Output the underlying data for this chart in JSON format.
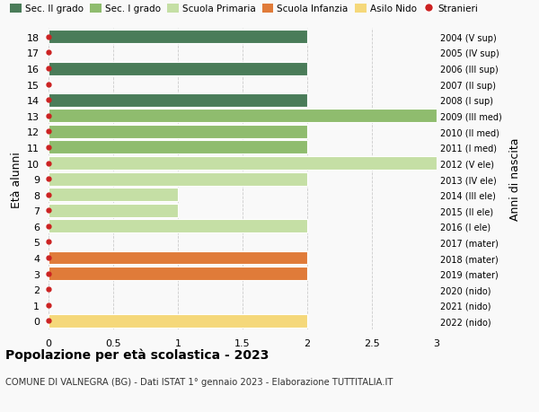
{
  "ages": [
    18,
    17,
    16,
    15,
    14,
    13,
    12,
    11,
    10,
    9,
    8,
    7,
    6,
    5,
    4,
    3,
    2,
    1,
    0
  ],
  "right_labels": [
    "2004 (V sup)",
    "2005 (IV sup)",
    "2006 (III sup)",
    "2007 (II sup)",
    "2008 (I sup)",
    "2009 (III med)",
    "2010 (II med)",
    "2011 (I med)",
    "2012 (V ele)",
    "2013 (IV ele)",
    "2014 (III ele)",
    "2015 (II ele)",
    "2016 (I ele)",
    "2017 (mater)",
    "2018 (mater)",
    "2019 (mater)",
    "2020 (nido)",
    "2021 (nido)",
    "2022 (nido)"
  ],
  "bar_values": [
    2,
    0,
    2,
    0,
    2,
    3,
    2,
    2,
    3,
    2,
    1,
    1,
    2,
    0,
    2,
    2,
    0,
    0,
    2
  ],
  "bar_colors": [
    "#4a7c59",
    "#4a7c59",
    "#4a7c59",
    "#4a7c59",
    "#4a7c59",
    "#8fbc6e",
    "#8fbc6e",
    "#8fbc6e",
    "#c5dfa5",
    "#c5dfa5",
    "#c5dfa5",
    "#c5dfa5",
    "#c5dfa5",
    "#e07b39",
    "#e07b39",
    "#e07b39",
    "#f5d87a",
    "#f5d87a",
    "#f5d87a"
  ],
  "stranieri_dots": [
    18,
    17,
    16,
    15,
    14,
    13,
    12,
    11,
    10,
    9,
    8,
    7,
    6,
    5,
    4,
    3,
    2,
    1,
    0
  ],
  "legend_labels": [
    "Sec. II grado",
    "Sec. I grado",
    "Scuola Primaria",
    "Scuola Infanzia",
    "Asilo Nido",
    "Stranieri"
  ],
  "legend_colors": [
    "#4a7c59",
    "#8fbc6e",
    "#c5dfa5",
    "#e07b39",
    "#f5d87a",
    "#cc2222"
  ],
  "xlim": [
    0,
    3.0
  ],
  "xticks": [
    0,
    0.5,
    1.0,
    1.5,
    2.0,
    2.5,
    3.0
  ],
  "ylabel": "Età alunni",
  "right_ylabel": "Anni di nascita",
  "title": "Popolazione per età scolastica - 2023",
  "subtitle": "COMUNE DI VALNEGRA (BG) - Dati ISTAT 1° gennaio 2023 - Elaborazione TUTTITALIA.IT",
  "bg_color": "#f9f9f9",
  "bar_height": 0.85,
  "dot_color": "#cc2222",
  "dot_size": 3.5
}
